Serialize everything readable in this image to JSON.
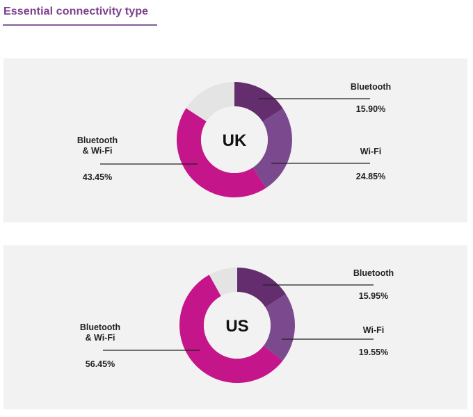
{
  "header": {
    "title": "Essential connectivity type"
  },
  "colors": {
    "bluetooth": "#642d6e",
    "wifi": "#7b4a8e",
    "both": "#c4168a",
    "other": "#e4e4e4",
    "panel": "#f2f2f2",
    "title": "#7b3f8c"
  },
  "chart_data": [
    {
      "type": "pie",
      "variant": "donut",
      "title": "UK",
      "categories": [
        "Bluetooth",
        "Wi-Fi",
        "Bluetooth & Wi-Fi"
      ],
      "values": [
        15.9,
        24.85,
        43.45
      ],
      "value_labels": [
        "15.90%",
        "24.85%",
        "43.45%"
      ],
      "label_lines": [
        [
          "Bluetooth"
        ],
        [
          "Wi-Fi"
        ],
        [
          "Bluetooth",
          "& Wi-Fi"
        ]
      ],
      "unit": "%"
    },
    {
      "type": "pie",
      "variant": "donut",
      "title": "US",
      "categories": [
        "Bluetooth",
        "Wi-Fi",
        "Bluetooth & Wi-Fi"
      ],
      "values": [
        15.95,
        19.55,
        56.45
      ],
      "value_labels": [
        "15.95%",
        "19.55%",
        "56.45%"
      ],
      "label_lines": [
        [
          "Bluetooth"
        ],
        [
          "Wi-Fi"
        ],
        [
          "Bluetooth",
          "& Wi-Fi"
        ]
      ],
      "unit": "%"
    }
  ]
}
